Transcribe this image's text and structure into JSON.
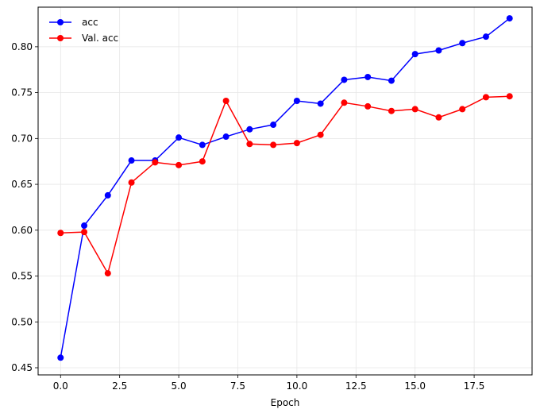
{
  "chart_data": {
    "type": "line",
    "title": "",
    "xlabel": "Epoch",
    "ylabel": "",
    "xlim": [
      -0.95,
      19.95
    ],
    "ylim": [
      0.4422,
      0.8432
    ],
    "xticks": [
      0.0,
      2.5,
      5.0,
      7.5,
      10.0,
      12.5,
      15.0,
      17.5
    ],
    "xtick_labels": [
      "0.0",
      "2.5",
      "5.0",
      "7.5",
      "10.0",
      "12.5",
      "15.0",
      "17.5"
    ],
    "yticks": [
      0.45,
      0.5,
      0.55,
      0.6,
      0.65,
      0.7,
      0.75,
      0.8
    ],
    "ytick_labels": [
      "0.45",
      "0.50",
      "0.55",
      "0.60",
      "0.65",
      "0.70",
      "0.75",
      "0.80"
    ],
    "grid": true,
    "legend_position": "top-left",
    "x": [
      0,
      1,
      2,
      3,
      4,
      5,
      6,
      7,
      8,
      9,
      10,
      11,
      12,
      13,
      14,
      15,
      16,
      17,
      18,
      19
    ],
    "series": [
      {
        "name": "acc",
        "color": "#0000ff",
        "values": [
          0.461,
          0.605,
          0.638,
          0.676,
          0.676,
          0.701,
          0.693,
          0.702,
          0.71,
          0.715,
          0.741,
          0.738,
          0.764,
          0.767,
          0.763,
          0.792,
          0.796,
          0.804,
          0.811,
          0.831
        ]
      },
      {
        "name": "Val. acc",
        "color": "#ff0000",
        "values": [
          0.597,
          0.598,
          0.553,
          0.652,
          0.674,
          0.671,
          0.675,
          0.741,
          0.694,
          0.693,
          0.695,
          0.704,
          0.739,
          0.735,
          0.73,
          0.732,
          0.723,
          0.732,
          0.745,
          0.746
        ]
      }
    ]
  }
}
